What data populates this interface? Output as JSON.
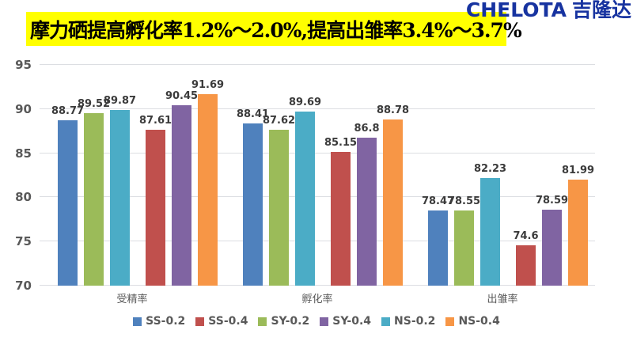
{
  "banner": {
    "text": "摩力硒提高孵化率1.2%～2.0%,提高出雏率3.4%～3.7%",
    "bg": "#FFFF00",
    "text_color": "#000000"
  },
  "logo": {
    "text_en": "CHELOTA",
    "text_cn": "吉隆达",
    "color": "#1733A0"
  },
  "chart_data": {
    "type": "bar",
    "categories": [
      "受精率",
      "孵化率",
      "出雏率"
    ],
    "series": [
      {
        "name": "SS-0.2",
        "color": "#4F81BD",
        "values": [
          88.77,
          88.41,
          78.47
        ]
      },
      {
        "name": "SS-0.4",
        "color": "#C0504D",
        "values": [
          87.61,
          85.15,
          74.6
        ]
      },
      {
        "name": "SY-0.2",
        "color": "#9BBB59",
        "values": [
          89.52,
          87.62,
          78.55
        ]
      },
      {
        "name": "SY-0.4",
        "color": "#8064A2",
        "values": [
          90.45,
          86.8,
          78.59
        ]
      },
      {
        "name": "NS-0.2",
        "color": "#4BACC6",
        "values": [
          89.87,
          89.69,
          82.23
        ]
      },
      {
        "name": "NS-0.4",
        "color": "#F79646",
        "values": [
          91.69,
          88.78,
          81.99
        ]
      }
    ],
    "bar_order": [
      "SS-0.2",
      "SY-0.2",
      "NS-0.2",
      "SS-0.4",
      "SY-0.4",
      "NS-0.4"
    ],
    "legend_order": [
      "SS-0.2",
      "SS-0.4",
      "SY-0.2",
      "SY-0.4",
      "NS-0.2",
      "NS-0.4"
    ],
    "ylim": [
      70,
      95
    ],
    "yticks": [
      70,
      75,
      80,
      85,
      90,
      95
    ],
    "grid": true,
    "legend_position": "bottom",
    "title": "",
    "xlabel": "",
    "ylabel": ""
  }
}
